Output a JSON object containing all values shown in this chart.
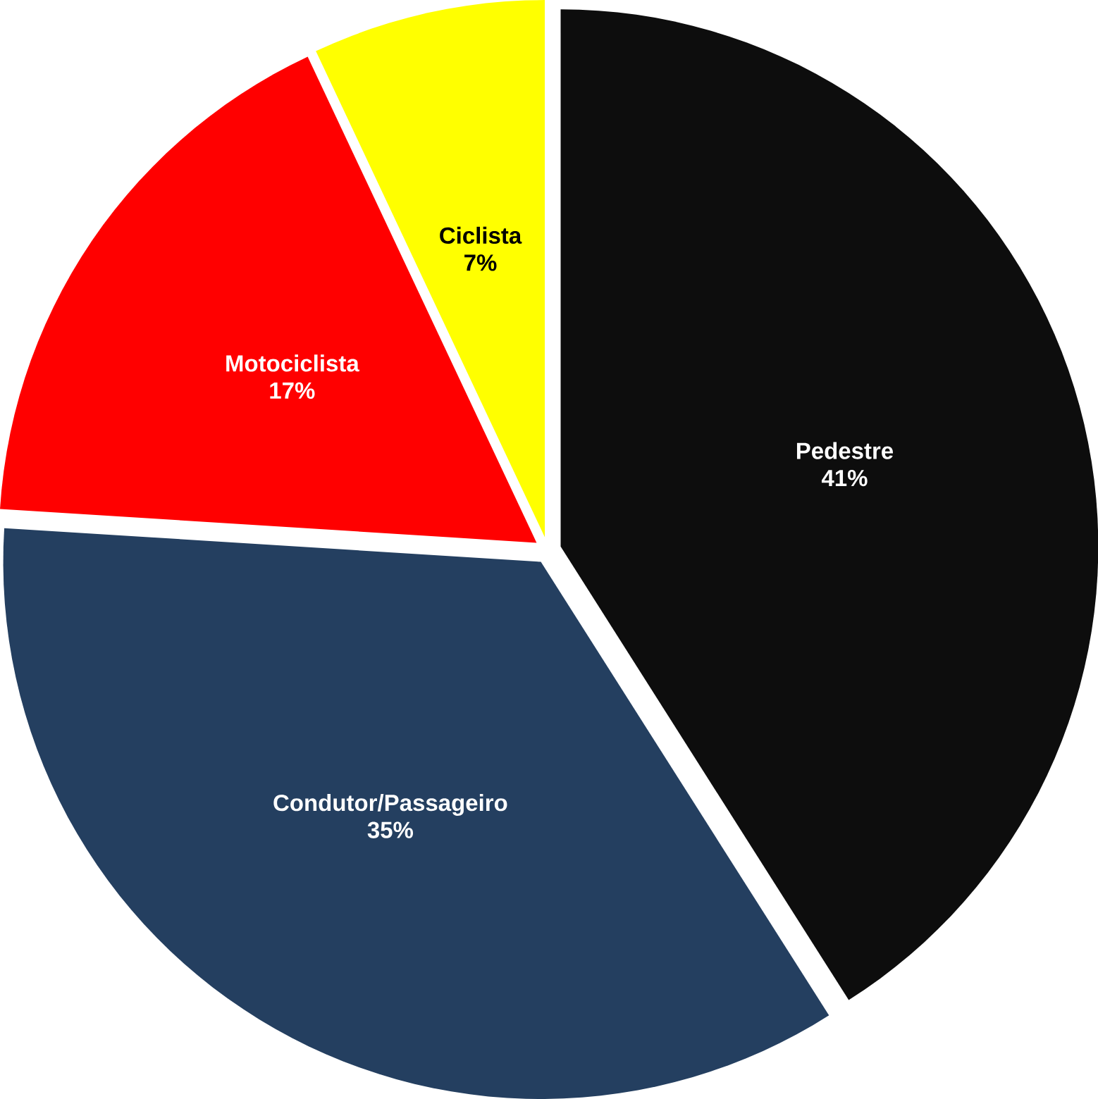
{
  "chart_data": {
    "type": "pie",
    "categories": [
      "Pedestre",
      "Condutor/Passageiro",
      "Motociclista",
      "Ciclista"
    ],
    "values": [
      41,
      35,
      17,
      7
    ],
    "value_labels": [
      "41%",
      "35%",
      "17%",
      "7%"
    ],
    "colors": [
      "#0d0d0d",
      "#243f60",
      "#ff0000",
      "#ffff00"
    ]
  }
}
